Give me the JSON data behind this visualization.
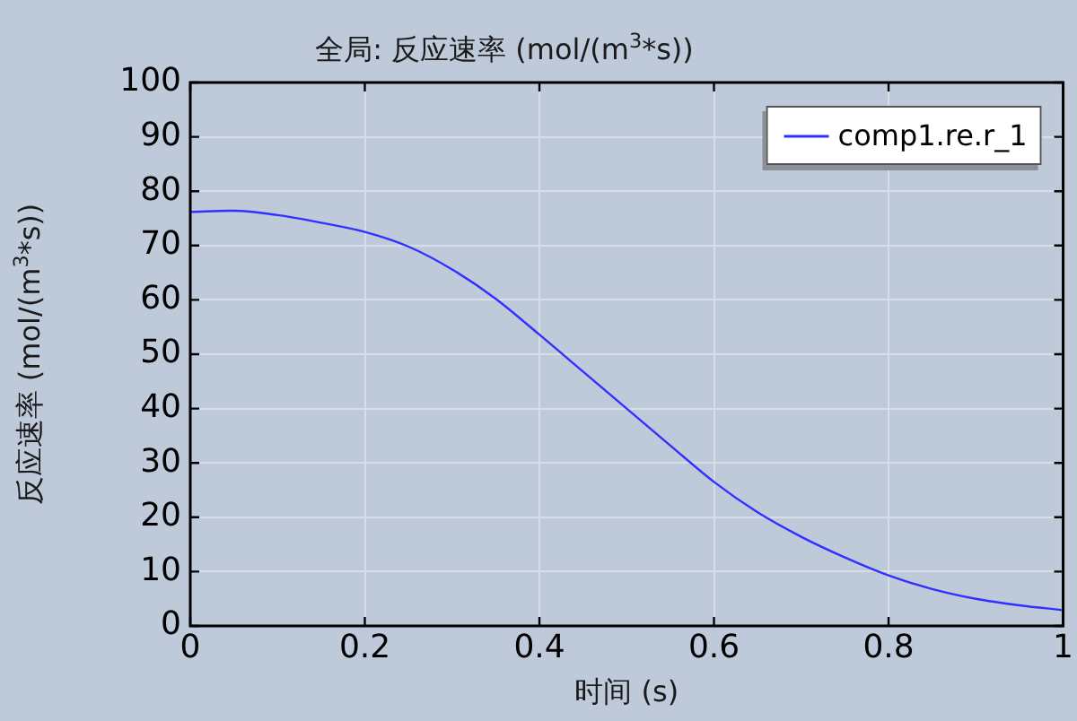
{
  "chart_data": {
    "type": "line",
    "title": "全局: 反应速率 (mol/(m$^{3}$*s))",
    "xlabel": "时间 (s)",
    "ylabel": "反应速率 (mol/(m$^{3}$*s))",
    "x": [
      0,
      0.05,
      0.1,
      0.15,
      0.2,
      0.25,
      0.3,
      0.35,
      0.4,
      0.45,
      0.5,
      0.55,
      0.6,
      0.65,
      0.7,
      0.75,
      0.8,
      0.85,
      0.9,
      0.95,
      1
    ],
    "series": [
      {
        "name": "comp1.re.r_1",
        "color": "#3030ff",
        "values": [
          76.2,
          76.4,
          75.6,
          74.2,
          72.5,
          69.8,
          65.6,
          60.2,
          53.6,
          46.8,
          40.0,
          33.2,
          26.5,
          20.9,
          16.4,
          12.6,
          9.3,
          6.8,
          5.0,
          3.8,
          2.9
        ]
      }
    ],
    "xlim": [
      0,
      1
    ],
    "ylim": [
      0,
      100
    ],
    "xticks": [
      0,
      0.2,
      0.4,
      0.6,
      0.8,
      1
    ],
    "yticks": [
      0,
      10,
      20,
      30,
      40,
      50,
      60,
      70,
      80,
      90,
      100
    ],
    "grid": true,
    "legend": "top right",
    "marker": "none",
    "line_style": "solid"
  }
}
